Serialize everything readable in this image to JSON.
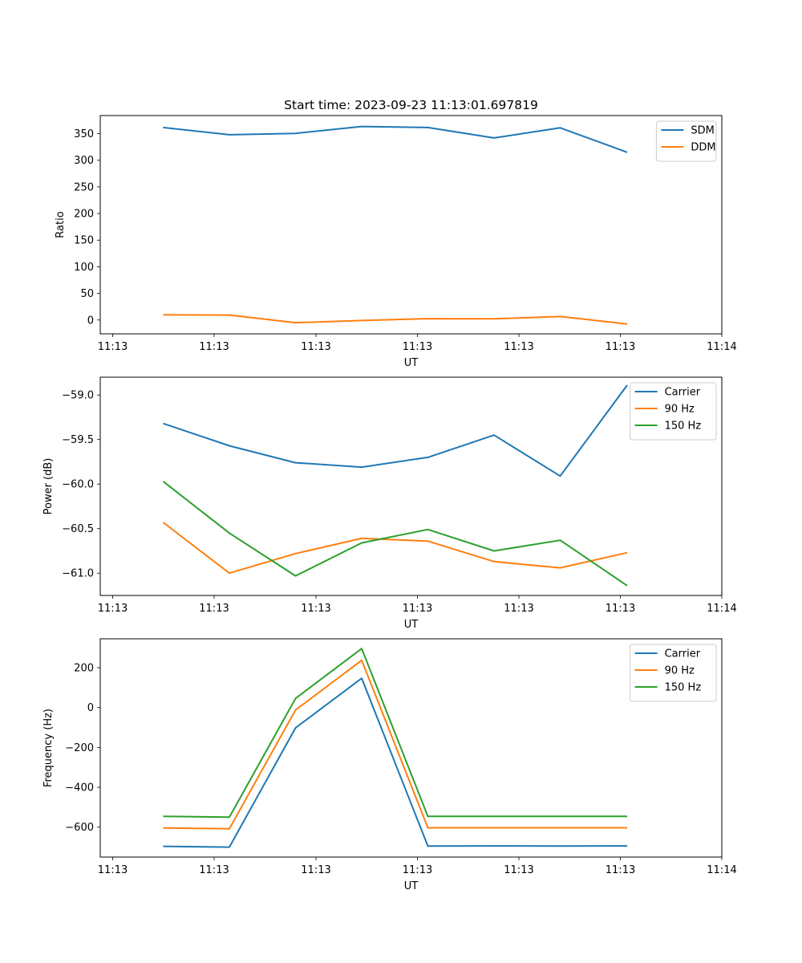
{
  "chart_data": [
    {
      "type": "line",
      "title": "Start time: 2023-09-23 11:13:01.697819",
      "xlabel": "UT",
      "ylabel": "Ratio",
      "x_tick_labels": [
        "11:13",
        "11:13",
        "11:13",
        "11:13",
        "11:13",
        "11:13",
        "11:14"
      ],
      "y_ticks": [
        0,
        50,
        100,
        150,
        200,
        250,
        300,
        350
      ],
      "ylim": [
        -26,
        384
      ],
      "legend_position": "top-right",
      "series": [
        {
          "name": "SDM",
          "color": "#1f77b4",
          "values": [
            361.5,
            348.0,
            350.5,
            363.5,
            361.5,
            342.0,
            361.0,
            315.0
          ]
        },
        {
          "name": "DDM",
          "color": "#ff7f0e",
          "values": [
            9.7,
            9.2,
            -5.0,
            -1.0,
            2.5,
            2.2,
            6.5,
            -7.5
          ]
        }
      ]
    },
    {
      "type": "line",
      "title": "",
      "xlabel": "UT",
      "ylabel": "Power (dB)",
      "x_tick_labels": [
        "11:13",
        "11:13",
        "11:13",
        "11:13",
        "11:13",
        "11:13",
        "11:14"
      ],
      "y_ticks": [
        -61.0,
        -60.5,
        -60.0,
        -59.5,
        -59.0
      ],
      "y_tick_labels": [
        "−61.0",
        "−60.5",
        "−60.0",
        "−59.5",
        "−59.0"
      ],
      "ylim": [
        -61.25,
        -58.8
      ],
      "legend_position": "top-right",
      "series": [
        {
          "name": "Carrier",
          "color": "#1f77b4",
          "values": [
            -59.32,
            -59.57,
            -59.76,
            -59.81,
            -59.7,
            -59.45,
            -59.91,
            -58.89
          ]
        },
        {
          "name": "90 Hz",
          "color": "#ff7f0e",
          "values": [
            -60.43,
            -61.0,
            -60.78,
            -60.61,
            -60.64,
            -60.87,
            -60.94,
            -60.77
          ]
        },
        {
          "name": "150 Hz",
          "color": "#2ca02c",
          "values": [
            -59.97,
            -60.55,
            -61.03,
            -60.66,
            -60.51,
            -60.75,
            -60.63,
            -61.14
          ]
        }
      ]
    },
    {
      "type": "line",
      "title": "",
      "xlabel": "UT",
      "ylabel": "Frequency (Hz)",
      "x_tick_labels": [
        "11:13",
        "11:13",
        "11:13",
        "11:13",
        "11:13",
        "11:13",
        "11:14"
      ],
      "y_ticks": [
        -600,
        -400,
        -200,
        0,
        200
      ],
      "y_tick_labels": [
        "−600",
        "−400",
        "−200",
        "0",
        "200"
      ],
      "ylim": [
        -750,
        345
      ],
      "legend_position": "top-right",
      "series": [
        {
          "name": "Carrier",
          "color": "#1f77b4",
          "values": [
            -696,
            -700,
            -102,
            147,
            -695,
            -694,
            -695,
            -694
          ]
        },
        {
          "name": "90 Hz",
          "color": "#ff7f0e",
          "values": [
            -604,
            -608,
            -12,
            237,
            -603,
            -603,
            -603,
            -603
          ]
        },
        {
          "name": "150 Hz",
          "color": "#2ca02c",
          "values": [
            -546,
            -550,
            46,
            296,
            -546,
            -546,
            -546,
            -546
          ]
        }
      ]
    }
  ]
}
